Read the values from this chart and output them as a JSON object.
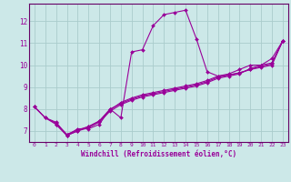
{
  "xlabel": "Windchill (Refroidissement éolien,°C)",
  "bg_color": "#cce8e8",
  "line_color": "#990099",
  "grid_color": "#aacccc",
  "axis_color": "#660066",
  "xlim": [
    -0.5,
    23.5
  ],
  "ylim": [
    6.5,
    12.8
  ],
  "yticks": [
    7,
    8,
    9,
    10,
    11,
    12
  ],
  "xticks": [
    0,
    1,
    2,
    3,
    4,
    5,
    6,
    7,
    8,
    9,
    10,
    11,
    12,
    13,
    14,
    15,
    16,
    17,
    18,
    19,
    20,
    21,
    22,
    23
  ],
  "lines": [
    {
      "x": [
        0,
        1,
        2,
        3,
        4,
        5,
        6,
        7,
        8,
        9,
        10,
        11,
        12,
        13,
        14,
        15,
        16,
        17,
        18,
        19,
        20,
        21,
        22,
        23
      ],
      "y": [
        8.1,
        7.6,
        7.4,
        6.8,
        7.1,
        7.1,
        7.3,
        8.0,
        7.6,
        10.6,
        10.7,
        11.8,
        12.3,
        12.4,
        12.5,
        11.2,
        9.7,
        9.5,
        9.6,
        9.8,
        10.0,
        10.0,
        10.3,
        11.1
      ]
    },
    {
      "x": [
        0,
        1,
        2,
        3,
        4,
        5,
        6,
        7,
        8,
        9,
        10,
        11,
        12,
        13,
        14,
        15,
        16,
        17,
        18,
        19,
        20,
        21,
        22,
        23
      ],
      "y": [
        8.1,
        7.6,
        7.35,
        6.85,
        7.05,
        7.2,
        7.45,
        8.0,
        8.25,
        8.45,
        8.6,
        8.7,
        8.8,
        8.9,
        9.0,
        9.1,
        9.25,
        9.45,
        9.55,
        9.65,
        9.8,
        9.95,
        10.05,
        11.1
      ]
    },
    {
      "x": [
        0,
        1,
        2,
        3,
        4,
        5,
        6,
        7,
        8,
        9,
        10,
        11,
        12,
        13,
        14,
        15,
        16,
        17,
        18,
        19,
        20,
        21,
        22,
        23
      ],
      "y": [
        8.1,
        7.6,
        7.3,
        6.8,
        7.0,
        7.15,
        7.4,
        7.9,
        8.2,
        8.4,
        8.55,
        8.65,
        8.75,
        8.85,
        8.95,
        9.05,
        9.2,
        9.4,
        9.5,
        9.6,
        9.85,
        10.0,
        10.1,
        11.1
      ]
    },
    {
      "x": [
        2,
        3,
        4,
        5,
        6,
        7,
        8,
        9,
        10,
        11,
        12,
        13,
        14,
        15,
        16,
        17,
        18,
        19,
        20,
        21,
        22,
        23
      ],
      "y": [
        7.3,
        6.8,
        7.0,
        7.2,
        7.45,
        7.95,
        8.3,
        8.5,
        8.65,
        8.75,
        8.85,
        8.95,
        9.05,
        9.15,
        9.3,
        9.5,
        9.55,
        9.65,
        9.8,
        9.9,
        10.0,
        11.1
      ]
    }
  ]
}
